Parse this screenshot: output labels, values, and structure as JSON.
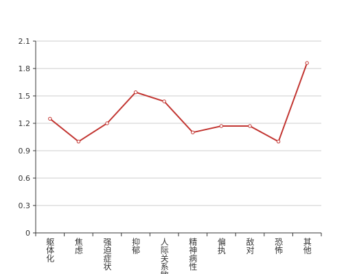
{
  "chart_data": {
    "type": "line",
    "categories": [
      "躯体化",
      "焦虑",
      "强迫症状",
      "抑郁",
      "人际关系敏感",
      "精神病性",
      "偏执",
      "敌对",
      "恐怖",
      "其他"
    ],
    "values": [
      1.25,
      1.0,
      1.2,
      1.54,
      1.44,
      1.1,
      1.17,
      1.17,
      1.0,
      1.86
    ],
    "color": "#c23531",
    "ylim": [
      0,
      2.1
    ],
    "yticks": [
      0,
      0.3,
      0.6,
      0.9,
      1.2,
      1.5,
      1.8,
      2.1
    ],
    "grid": true
  }
}
